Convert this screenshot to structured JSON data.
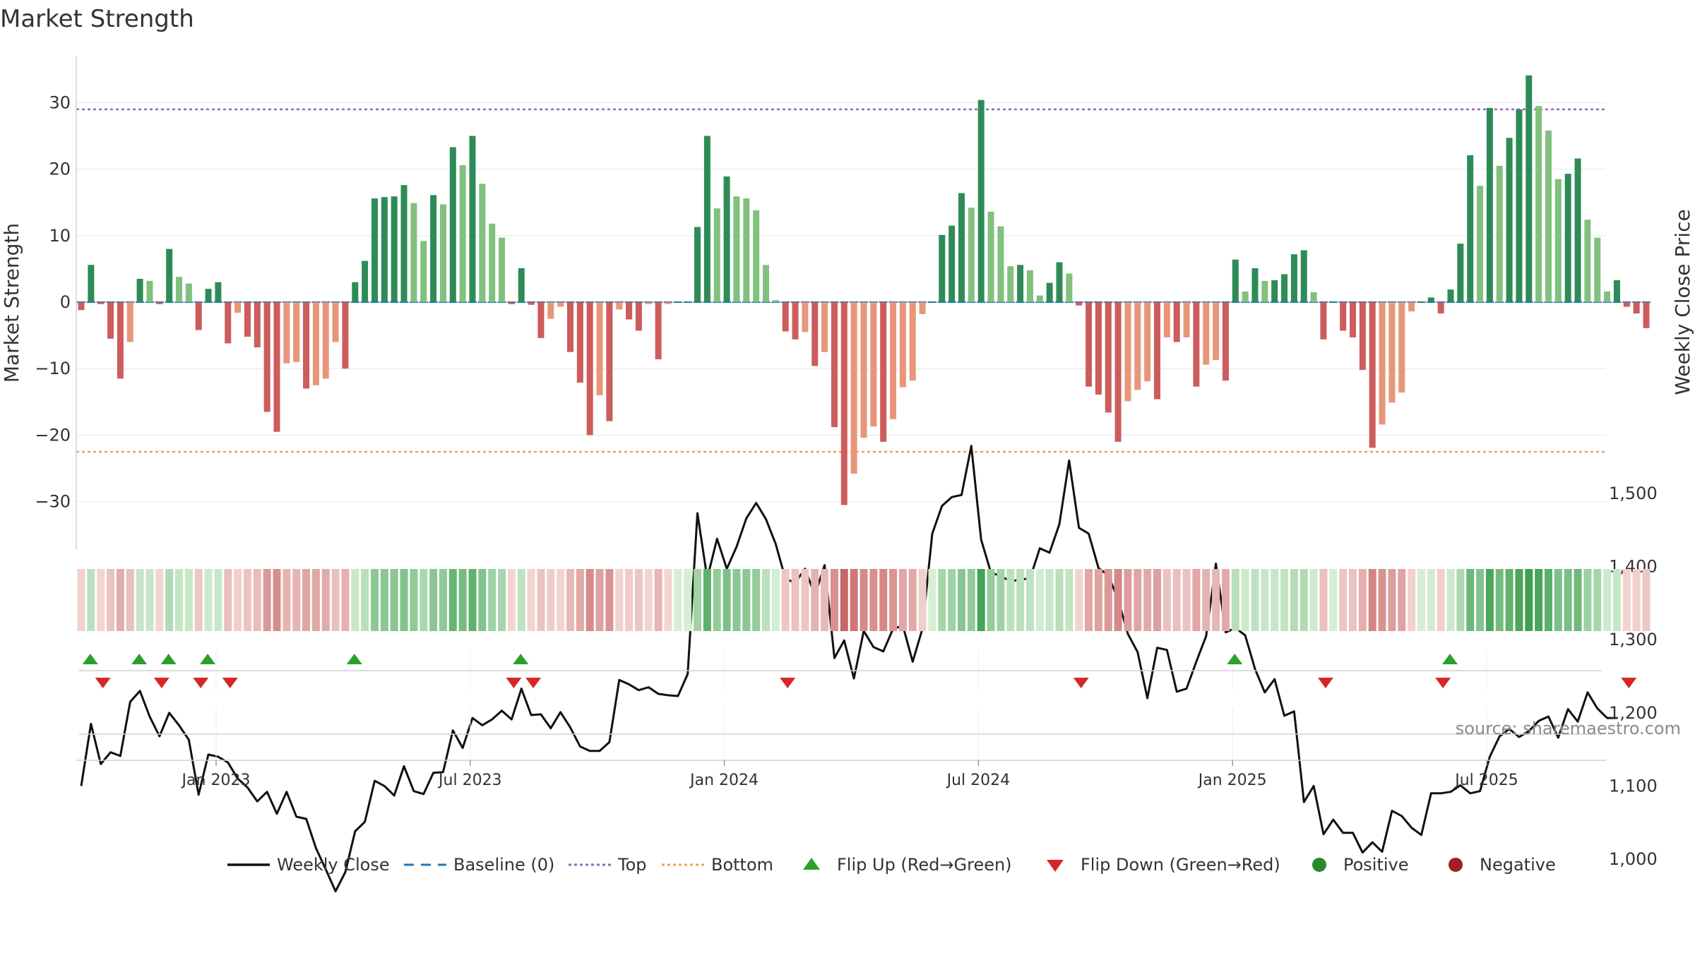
{
  "chart_data": {
    "type": "bar",
    "title": "Market Strength",
    "ylabel": "Market Strength",
    "y2label": "Weekly Close Price",
    "ylim": [
      -37,
      36
    ],
    "y2lim": [
      950,
      1620
    ],
    "yticks": [
      30,
      20,
      10,
      0,
      -10,
      -20,
      -30
    ],
    "yticklabels": [
      "30",
      "20",
      "10",
      "0",
      "−10",
      "−20",
      "−30"
    ],
    "y2ticks": [
      1500,
      1400,
      1300,
      1200,
      1100,
      1000
    ],
    "y2ticklabels": [
      "1,500",
      "1,400",
      "1,300",
      "1,200",
      "1,100",
      "1,000"
    ],
    "xticklabels": [
      "Jan 2023",
      "Jul 2023",
      "Jan 2024",
      "Jul 2024",
      "Jan 2025",
      "Jul 2025"
    ],
    "xtick_weeks": [
      16.5,
      42.5,
      68.5,
      94.5,
      120.5,
      146.5
    ],
    "top_level": 29,
    "bottom_level": -22.5,
    "grid": true,
    "legend_position": "bottom",
    "series": [
      {
        "name": "Market Strength",
        "values": [
          -1.2,
          5.6,
          -0.3,
          -5.5,
          -11.5,
          -6.0,
          3.5,
          3.2,
          -0.3,
          8.0,
          3.8,
          2.8,
          -4.2,
          2.0,
          3.0,
          -6.2,
          -1.6,
          -5.2,
          -6.8,
          -16.5,
          -19.5,
          -9.2,
          -9.0,
          -13.0,
          -12.5,
          -11.5,
          -6.0,
          -10.0,
          3.0,
          6.2,
          15.6,
          15.8,
          15.9,
          17.6,
          14.9,
          9.2,
          16.1,
          14.7,
          23.3,
          20.6,
          25.0,
          17.8,
          11.8,
          9.7,
          -0.3,
          5.1,
          -0.4,
          -5.4,
          -2.5,
          -0.7,
          -7.5,
          -12.1,
          -20.0,
          -14.0,
          -17.9,
          -1.1,
          -2.6,
          -4.3,
          -0.3,
          -8.6,
          -0.3,
          0.0,
          0.0,
          11.3,
          25.0,
          14.1,
          18.9,
          15.9,
          15.6,
          13.8,
          5.6,
          0.3,
          -4.4,
          -5.6,
          -4.5,
          -9.6,
          -7.5,
          -18.8,
          -30.5,
          -25.8,
          -20.4,
          -18.7,
          -21.0,
          -17.6,
          -12.8,
          -11.8,
          -1.8,
          0.0,
          10.1,
          11.5,
          16.4,
          14.2,
          30.4,
          13.6,
          11.4,
          5.4,
          5.6,
          4.8,
          1.0,
          2.9,
          6.0,
          4.3,
          -0.5,
          -12.7,
          -13.9,
          -16.6,
          -21.0,
          -14.9,
          -13.2,
          -11.9,
          -14.6,
          -5.3,
          -6.0,
          -5.3,
          -12.7,
          -9.4,
          -8.7,
          -11.8,
          6.4,
          1.6,
          5.1,
          3.2,
          3.3,
          4.2,
          7.2,
          7.8,
          1.5,
          -5.6,
          0.0,
          -4.3,
          -5.3,
          -10.2,
          -21.9,
          -18.4,
          -15.1,
          -13.6,
          -1.4,
          0.0,
          0.7,
          -1.7,
          1.9,
          8.8,
          22.1,
          17.5,
          29.2,
          20.5,
          24.7,
          29.0,
          34.1,
          29.5,
          25.8,
          18.5,
          19.3,
          21.6,
          12.4,
          9.7,
          1.6,
          3.3,
          -0.7,
          -1.7,
          -3.9
        ]
      },
      {
        "name": "Weekly Close",
        "values": [
          1100,
          1185,
          1130,
          1146,
          1141,
          1215,
          1230,
          1195,
          1168,
          1200,
          1183,
          1163,
          1088,
          1143,
          1140,
          1132,
          1110,
          1098,
          1079,
          1092,
          1062,
          1092,
          1058,
          1055,
          1015,
          986,
          956,
          982,
          1038,
          1051,
          1107,
          1100,
          1087,
          1127,
          1093,
          1089,
          1118,
          1119,
          1176,
          1152,
          1193,
          1183,
          1191,
          1203,
          1191,
          1233,
          1197,
          1198,
          1179,
          1201,
          1180,
          1154,
          1148,
          1148,
          1160,
          1245,
          1239,
          1231,
          1235,
          1226,
          1224,
          1223,
          1253,
          1473,
          1384,
          1438,
          1397,
          1427,
          1466,
          1487,
          1465,
          1431,
          1383,
          1378,
          1397,
          1361,
          1402,
          1275,
          1299,
          1247,
          1312,
          1290,
          1284,
          1315,
          1319,
          1270,
          1315,
          1445,
          1483,
          1495,
          1498,
          1565,
          1437,
          1392,
          1387,
          1380,
          1382,
          1384,
          1425,
          1419,
          1458,
          1545,
          1453,
          1445,
          1398,
          1388,
          1355,
          1308,
          1283,
          1220,
          1289,
          1286,
          1229,
          1233,
          1270,
          1305,
          1404,
          1310,
          1316,
          1306,
          1260,
          1228,
          1246,
          1196,
          1202,
          1078,
          1100,
          1034,
          1054,
          1036,
          1036,
          1009,
          1023,
          1010,
          1066,
          1059,
          1043,
          1033,
          1090,
          1090,
          1092,
          1101,
          1090,
          1093,
          1140,
          1168,
          1178,
          1167,
          1175,
          1189,
          1195,
          1166,
          1205,
          1188,
          1228,
          1206,
          1193,
          1193
        ]
      }
    ],
    "legend": [
      {
        "label": "Weekly Close",
        "style": "line",
        "color": "#111111"
      },
      {
        "label": "Baseline (0)",
        "style": "dashed",
        "color": "#1f77b4"
      },
      {
        "label": "Top",
        "style": "dotted",
        "color": "#9467bd"
      },
      {
        "label": "Bottom",
        "style": "dotted",
        "color": "#f0a050"
      },
      {
        "label": "Flip Up (Red→Green)",
        "style": "triangle-up",
        "color": "#2ca02c"
      },
      {
        "label": "Flip Down (Green→Red)",
        "style": "triangle-down",
        "color": "#d62728"
      },
      {
        "label": "Positive",
        "style": "circle",
        "color": "#2a8a2a"
      },
      {
        "label": "Negative",
        "style": "circle",
        "color": "#a02020"
      }
    ],
    "annotation": "source: sharemaestro.com",
    "colors": {
      "positive_dark": "#2e8b57",
      "positive_light": "#82c07e",
      "negative_dark": "#cd5c5c",
      "negative_light": "#e8967a",
      "baseline": "#1f77b4",
      "top": "#9467bd",
      "bottom": "#f0a050"
    }
  }
}
